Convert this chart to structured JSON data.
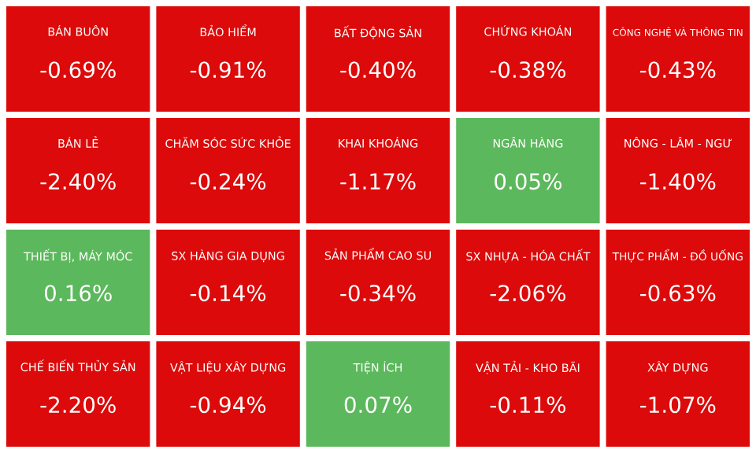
{
  "chart_data": {
    "type": "other",
    "categories": [
      "BÁN BUÔN",
      "BẢO HIỂM",
      "BẤT ĐỘNG SẢN",
      "CHỨNG KHOÁN",
      "CÔNG NGHỆ VÀ THÔNG TIN",
      "BÁN LẺ",
      "CHĂM SÓC SỨC KHỎE",
      "KHAI KHOÁNG",
      "NGÂN HÀNG",
      "NÔNG - LÂM - NGƯ",
      "THIẾT BỊ, MÁY MÓC",
      "SX HÀNG GIA DỤNG",
      "SẢN PHẨM CAO SU",
      "SX NHỰA - HÓA CHẤT",
      "THỰC PHẨM - ĐỒ UỐNG",
      "CHẾ BIẾN THỦY SẢN",
      "VẬT LIỆU XÂY DỰNG",
      "TIỆN ÍCH",
      "VẬN TẢI - KHO BÃI",
      "XÂY DỰNG"
    ],
    "values": [
      -0.69,
      -0.91,
      -0.4,
      -0.38,
      -0.43,
      -2.4,
      -0.24,
      -1.17,
      0.05,
      -1.4,
      0.16,
      -0.14,
      -0.34,
      -2.06,
      -0.63,
      -2.2,
      -0.94,
      0.07,
      -0.11,
      -1.07
    ],
    "value_labels": [
      "-0.69%",
      "-0.91%",
      "-0.40%",
      "-0.38%",
      "-0.43%",
      "-2.40%",
      "-0.24%",
      "-1.17%",
      "0.05%",
      "-1.40%",
      "0.16%",
      "-0.14%",
      "-0.34%",
      "-2.06%",
      "-0.63%",
      "-2.20%",
      "-0.94%",
      "0.07%",
      "-0.11%",
      "-1.07%"
    ],
    "colors": [
      "#dc0a0a",
      "#dc0a0a",
      "#dc0a0a",
      "#dc0a0a",
      "#dc0a0a",
      "#dc0a0a",
      "#dc0a0a",
      "#dc0a0a",
      "#5cb85c",
      "#dc0a0a",
      "#5cb85c",
      "#dc0a0a",
      "#dc0a0a",
      "#dc0a0a",
      "#dc0a0a",
      "#dc0a0a",
      "#dc0a0a",
      "#5cb85c",
      "#dc0a0a",
      "#dc0a0a"
    ]
  }
}
